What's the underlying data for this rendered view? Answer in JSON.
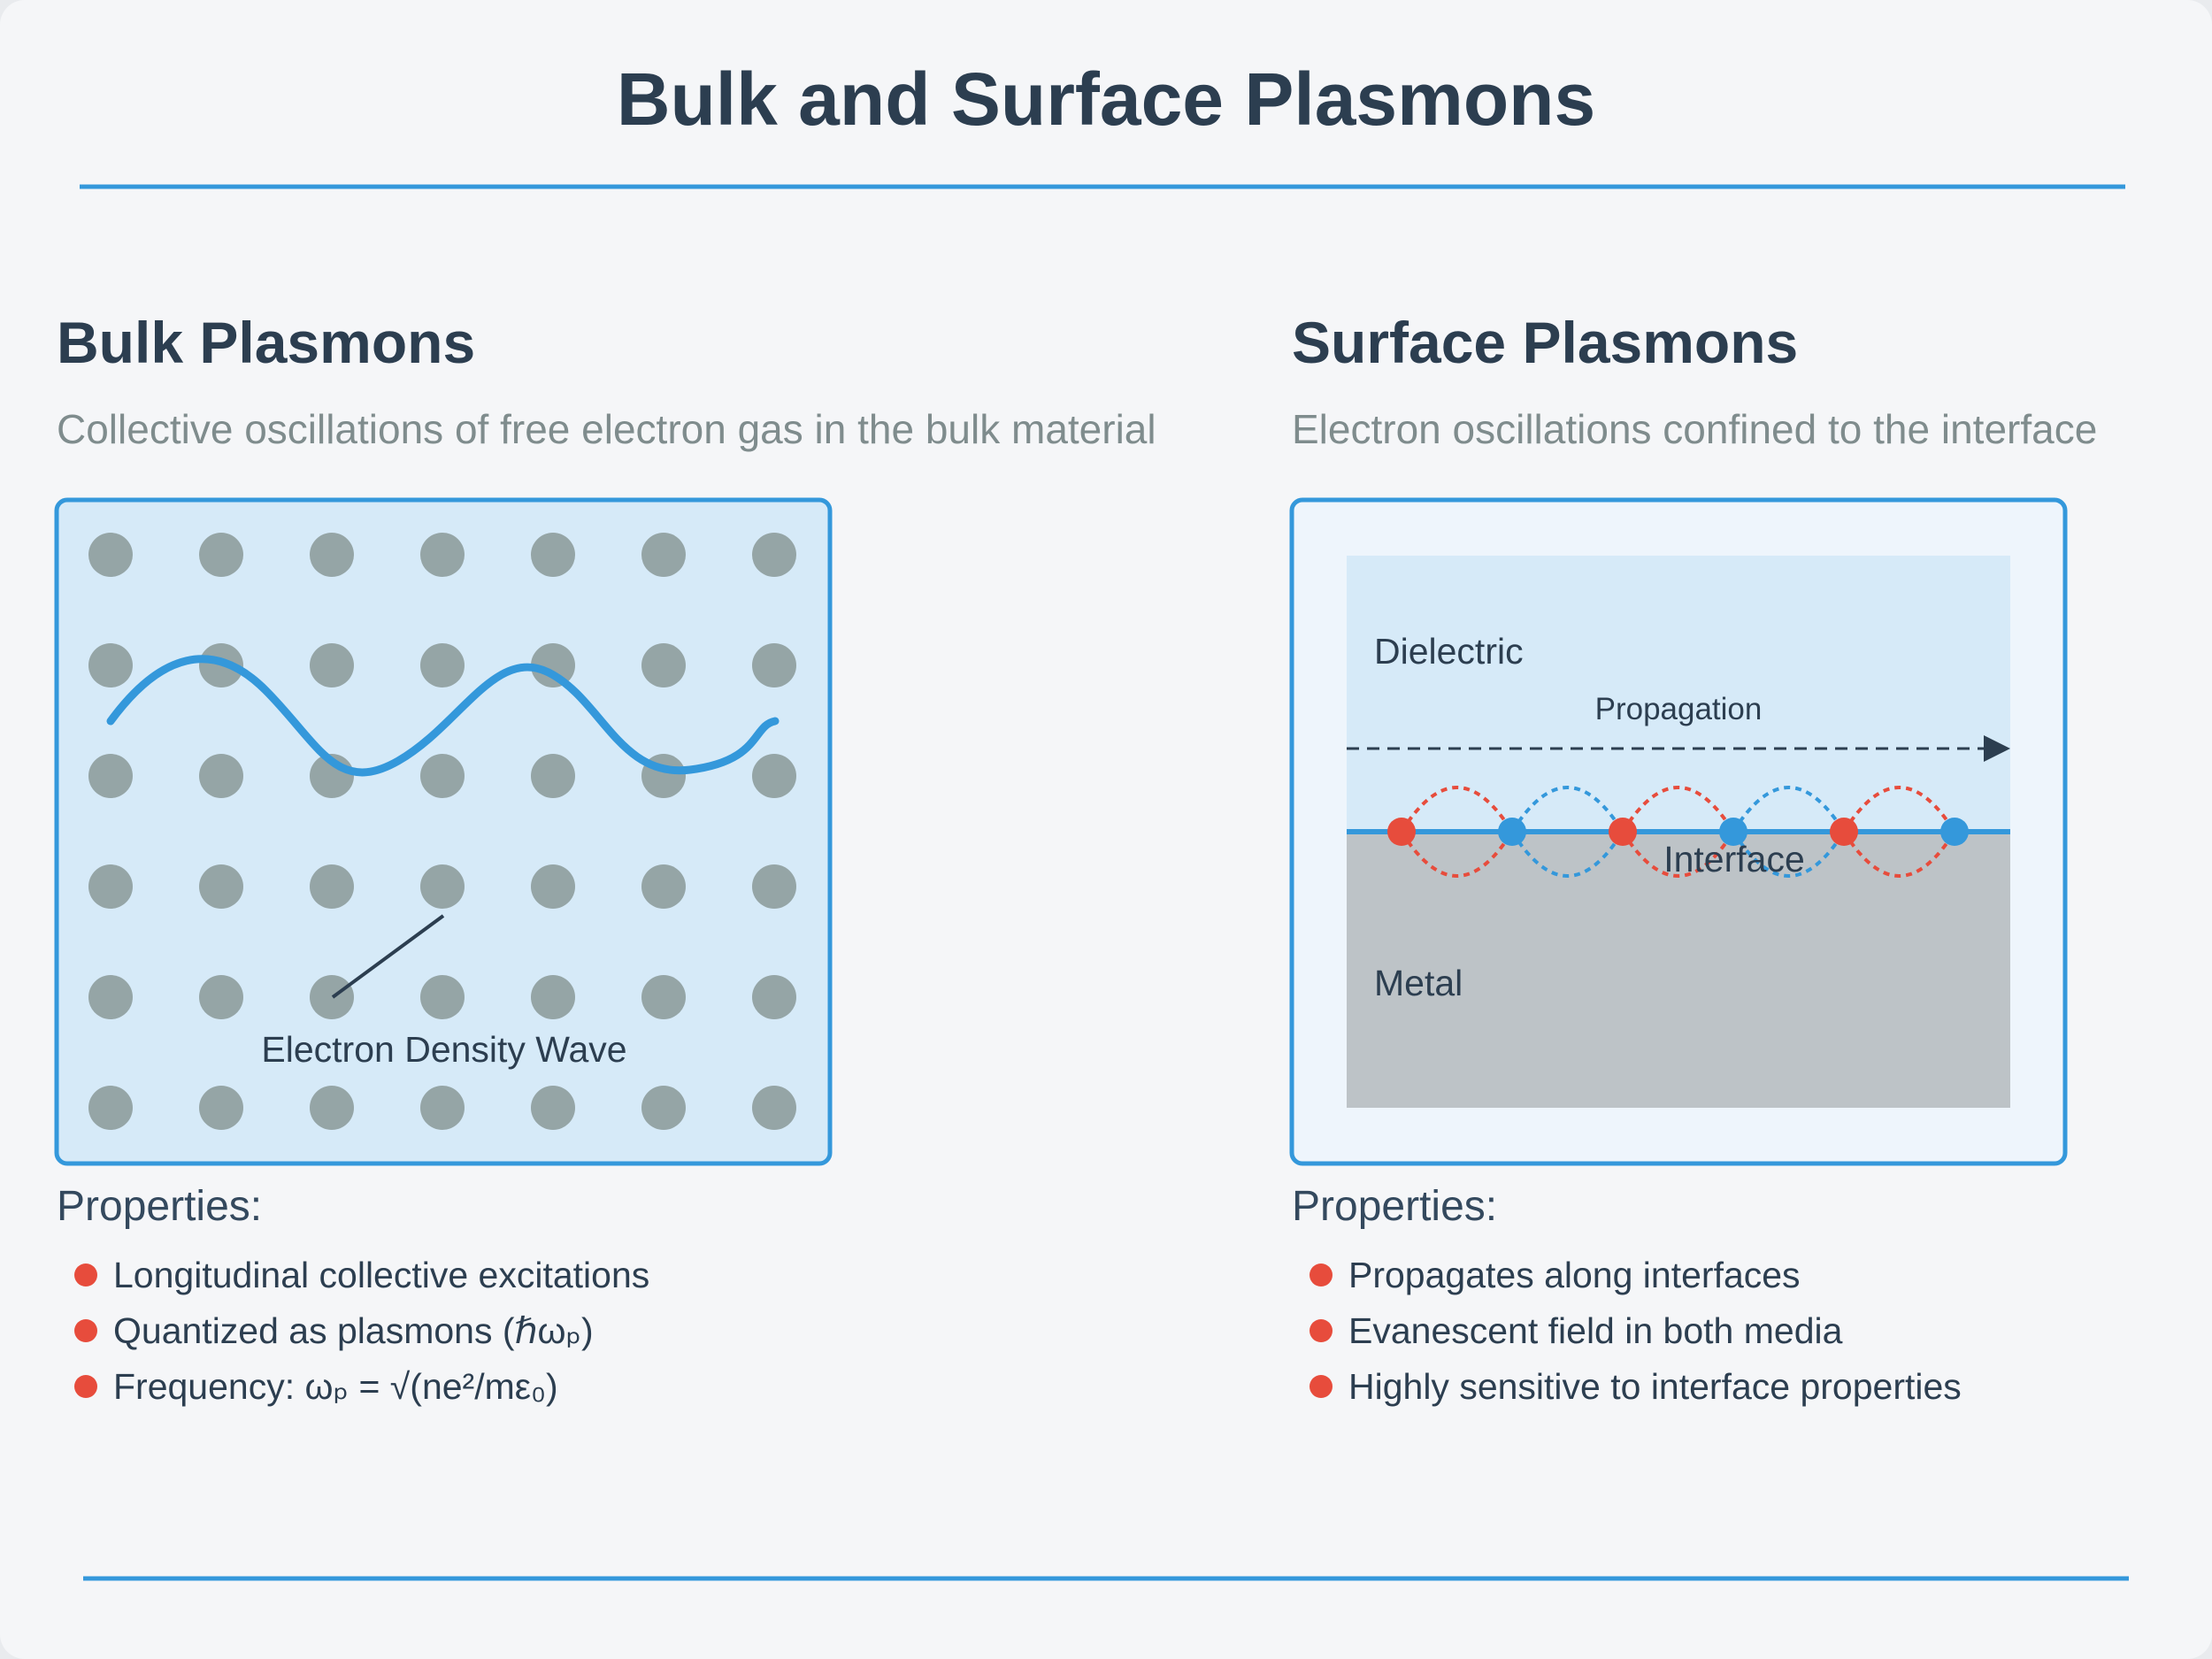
{
  "title": "Bulk and Surface Plasmons",
  "bulk": {
    "heading": "Bulk Plasmons",
    "description": "Collective oscillations of free electron gas in the bulk material",
    "diagram_label": "Electron Density Wave",
    "properties_heading": "Properties:",
    "properties": [
      "Longitudinal collective excitations",
      "Quantized as plasmons (ℏωₚ)",
      "Frequency: ωₚ = √(ne²/mε₀)"
    ]
  },
  "surface": {
    "heading": "Surface Plasmons",
    "description": "Electron oscillations confined to the interface",
    "dielectric_label": "Dielectric",
    "propagation_label": "Propagation",
    "interface_label": "Interface",
    "metal_label": "Metal",
    "properties_heading": "Properties:",
    "properties": [
      "Propagates along interfaces",
      "Evanescent field in both media",
      "Highly sensitive to interface properties"
    ]
  },
  "colors": {
    "title": "#2c3e50",
    "accent_blue": "#3498db",
    "accent_red": "#e74c3c",
    "electron_gray": "#95a5a6",
    "panel_fill": "#d6eaf8",
    "metal_fill": "#bdc3c7",
    "subtitle_gray": "#7f8c8d"
  }
}
